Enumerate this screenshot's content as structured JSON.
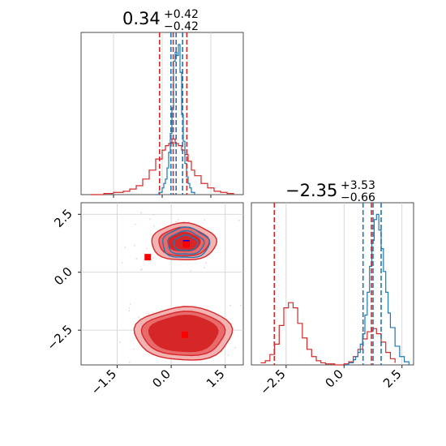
{
  "chart_data": [
    {
      "type": "histogram",
      "panel": "top-left",
      "title": {
        "value": "0.34",
        "plus": "+0.42",
        "minus": "−0.42"
      },
      "xlim": [
        -2.5,
        2.5
      ],
      "grid": true,
      "blue": {
        "color": "#1f77b4",
        "x": [
          -0.2,
          -0.1,
          0.0,
          0.05,
          0.1,
          0.15,
          0.2,
          0.25,
          0.3,
          0.35,
          0.4,
          0.45,
          0.5,
          0.55,
          0.6,
          0.65,
          0.7,
          0.75,
          0.8,
          0.85,
          0.9,
          1.0
        ],
        "y": [
          0,
          2,
          6,
          10,
          14,
          24,
          38,
          55,
          78,
          120,
          128,
          125,
          135,
          110,
          72,
          48,
          28,
          16,
          10,
          6,
          2,
          0
        ],
        "dashed_x": [
          0.27,
          0.43,
          0.63
        ]
      },
      "red": {
        "color": "#d62728",
        "x": [
          -2.2,
          -1.8,
          -1.5,
          -1.2,
          -1.0,
          -0.8,
          -0.6,
          -0.4,
          -0.2,
          0.0,
          0.1,
          0.2,
          0.3,
          0.4,
          0.5,
          0.6,
          0.7,
          0.8,
          0.9,
          1.0,
          1.2,
          1.4,
          1.6,
          1.8,
          2.0,
          2.2
        ],
        "y": [
          0,
          1,
          2,
          3,
          5,
          8,
          14,
          22,
          32,
          40,
          44,
          46,
          50,
          46,
          44,
          40,
          36,
          30,
          22,
          17,
          10,
          6,
          3,
          2,
          1,
          0
        ],
        "dashed_x": [
          -0.08,
          0.34,
          0.76
        ]
      }
    },
    {
      "type": "contour",
      "panel": "bottom-left",
      "xlim": [
        -2.5,
        2.0
      ],
      "ylim": [
        -4.0,
        3.0
      ],
      "xticks": [
        "−1.5",
        "0.0",
        "1.5"
      ],
      "yticks": [
        "2.5",
        "0.0",
        "−2.5"
      ],
      "xtick_values": [
        -1.5,
        0.0,
        1.5
      ],
      "ytick_values": [
        2.5,
        0.0,
        -2.5
      ],
      "grid": true,
      "red_modes": [
        {
          "cx": 0.35,
          "cy": 1.3,
          "rx": [
            0.9,
            0.7,
            0.45
          ],
          "ry": [
            0.8,
            0.62,
            0.4
          ]
        },
        {
          "cx": 0.35,
          "cy": -2.65,
          "rx": [
            1.35,
            1.15,
            0.95
          ],
          "ry": [
            1.15,
            0.95,
            0.78
          ]
        }
      ],
      "blue_mode": {
        "cx": 0.4,
        "cy": 1.25,
        "rx": [
          0.65,
          0.5,
          0.33
        ],
        "ry": [
          0.65,
          0.5,
          0.33
        ]
      },
      "markers": [
        {
          "x": 0.42,
          "y": 1.25,
          "color": "#0000ff"
        },
        {
          "x": 0.42,
          "y": 1.2,
          "color": "#ff0000"
        },
        {
          "x": -0.65,
          "y": 0.65,
          "color": "#ff0000"
        },
        {
          "x": 0.38,
          "y": -2.7,
          "color": "#ff0000"
        }
      ]
    },
    {
      "type": "histogram",
      "panel": "bottom-right",
      "title": {
        "value": "−2.35",
        "plus": "+3.53",
        "minus": "−0.66"
      },
      "xlim": [
        -4.0,
        3.0
      ],
      "xticks": [
        "−2.5",
        "0.0",
        "2.5"
      ],
      "xtick_values": [
        -2.5,
        0.0,
        2.5
      ],
      "grid": true,
      "blue": {
        "color": "#1f77b4",
        "x": [
          0.0,
          0.2,
          0.4,
          0.5,
          0.6,
          0.7,
          0.8,
          0.9,
          1.0,
          1.1,
          1.2,
          1.3,
          1.4,
          1.5,
          1.6,
          1.7,
          1.8,
          1.9,
          2.0,
          2.2,
          2.4,
          2.6,
          2.8
        ],
        "y": [
          0,
          2,
          5,
          8,
          12,
          20,
          30,
          48,
          70,
          95,
          120,
          140,
          145,
          130,
          112,
          90,
          70,
          50,
          36,
          18,
          8,
          3,
          0
        ],
        "dashed_x": [
          0.82,
          1.25,
          1.6
        ]
      },
      "red": {
        "color": "#d62728",
        "x": [
          -3.6,
          -3.4,
          -3.2,
          -3.0,
          -2.8,
          -2.6,
          -2.4,
          -2.2,
          -2.0,
          -1.8,
          -1.6,
          -1.4,
          -1.2,
          -1.0,
          -0.8,
          -0.4,
          0.0,
          0.2,
          0.4,
          0.6,
          0.8,
          1.0,
          1.2,
          1.4,
          1.6,
          1.8,
          2.0,
          2.2
        ],
        "y": [
          2,
          4,
          10,
          20,
          38,
          55,
          60,
          55,
          40,
          26,
          15,
          8,
          4,
          2,
          1,
          0,
          1,
          3,
          8,
          15,
          25,
          32,
          35,
          30,
          22,
          12,
          6,
          2
        ],
        "dashed_x": [
          -3.01,
          1.18
        ]
      }
    }
  ]
}
